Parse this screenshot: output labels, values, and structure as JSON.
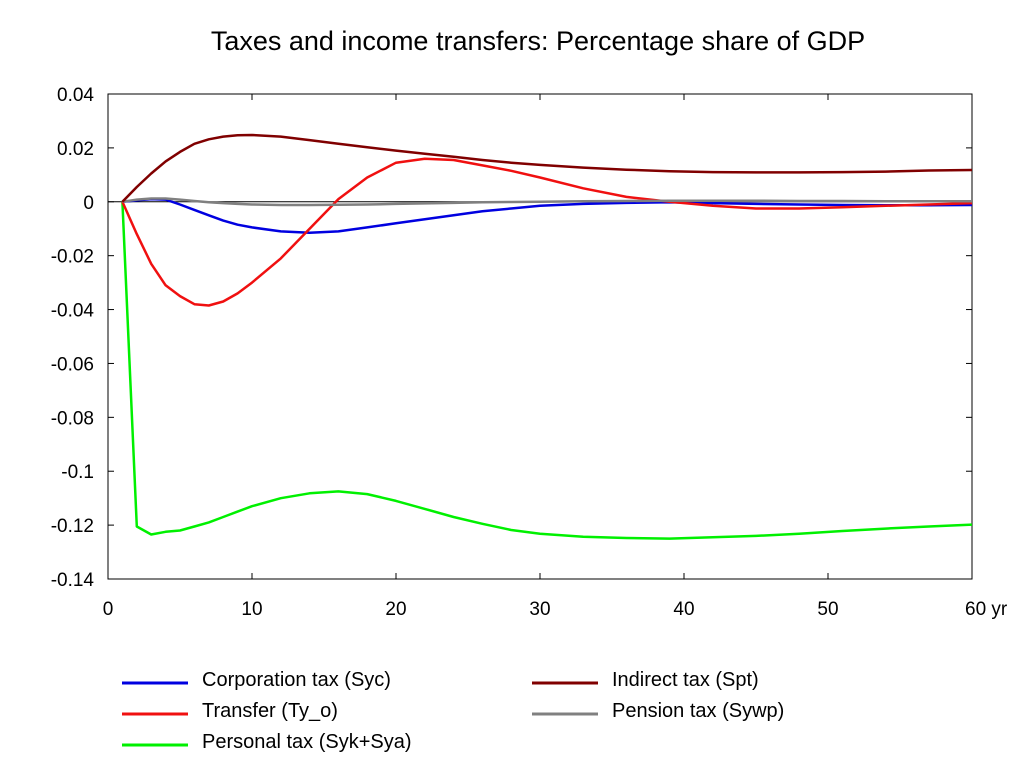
{
  "chart_data": {
    "type": "line",
    "title": "Taxes and income transfers: Percentage share of GDP",
    "xlabel": "",
    "ylabel": "",
    "xlim": [
      0,
      60
    ],
    "ylim": [
      -0.14,
      0.04
    ],
    "x_ticks": [
      0,
      10,
      20,
      30,
      40,
      50,
      60
    ],
    "x_tick_labels": [
      "0",
      "10",
      "20",
      "30",
      "40",
      "50",
      "60 yr"
    ],
    "y_ticks": [
      0.04,
      0.02,
      0,
      -0.02,
      -0.04,
      -0.06,
      -0.08,
      -0.1,
      -0.12,
      -0.14
    ],
    "y_tick_labels": [
      "0.04",
      "0.02",
      "0",
      "-0.02",
      "-0.04",
      "-0.06",
      "-0.08",
      "-0.1",
      "-0.12",
      "-0.14"
    ],
    "grid": false,
    "legend_placement": "bottom",
    "x": [
      1,
      2,
      3,
      4,
      5,
      6,
      7,
      8,
      9,
      10,
      12,
      14,
      16,
      18,
      20,
      22,
      24,
      26,
      28,
      30,
      33,
      36,
      39,
      42,
      45,
      48,
      51,
      54,
      57,
      60
    ],
    "series": [
      {
        "name": "Corporation tax (Syc)",
        "color": "#0000e0",
        "values": [
          0,
          0.0005,
          0.001,
          0.0008,
          -0.001,
          -0.003,
          -0.005,
          -0.007,
          -0.0085,
          -0.0095,
          -0.011,
          -0.0115,
          -0.011,
          -0.0095,
          -0.008,
          -0.0065,
          -0.005,
          -0.0035,
          -0.0025,
          -0.0015,
          -0.0008,
          -0.0004,
          -0.0002,
          -0.0005,
          -0.0008,
          -0.001,
          -0.0012,
          -0.0013,
          -0.0013,
          -0.0012
        ]
      },
      {
        "name": "Transfer (Ty_o)",
        "color": "#f01010",
        "values": [
          0,
          -0.012,
          -0.023,
          -0.031,
          -0.035,
          -0.038,
          -0.0385,
          -0.037,
          -0.034,
          -0.03,
          -0.021,
          -0.01,
          0.001,
          0.009,
          0.0145,
          0.016,
          0.0155,
          0.0135,
          0.0115,
          0.009,
          0.005,
          0.0018,
          0.0,
          -0.0015,
          -0.0025,
          -0.0025,
          -0.002,
          -0.0015,
          -0.001,
          -0.0005
        ]
      },
      {
        "name": "Personal tax (Syk+Sya)",
        "color": "#00f000",
        "values": [
          0,
          -0.1205,
          -0.1235,
          -0.1225,
          -0.122,
          -0.1205,
          -0.119,
          -0.117,
          -0.115,
          -0.113,
          -0.11,
          -0.1082,
          -0.1075,
          -0.1085,
          -0.111,
          -0.114,
          -0.117,
          -0.1195,
          -0.1218,
          -0.1232,
          -0.1243,
          -0.1248,
          -0.125,
          -0.1245,
          -0.124,
          -0.1232,
          -0.1222,
          -0.1213,
          -0.1205,
          -0.1198
        ]
      },
      {
        "name": "Indirect tax (Spt)",
        "color": "#800000",
        "values": [
          0,
          0.0055,
          0.0105,
          0.015,
          0.0185,
          0.0215,
          0.0232,
          0.0242,
          0.0247,
          0.0248,
          0.0242,
          0.0229,
          0.0215,
          0.0202,
          0.019,
          0.0178,
          0.0167,
          0.0155,
          0.0145,
          0.0137,
          0.0127,
          0.0119,
          0.0113,
          0.011,
          0.0109,
          0.0109,
          0.011,
          0.0112,
          0.0116,
          0.0118
        ]
      },
      {
        "name": "Pension tax (Sywp)",
        "color": "#808080",
        "values": [
          0,
          0.0008,
          0.0012,
          0.0012,
          0.0008,
          0.0003,
          -0.0002,
          -0.0005,
          -0.0008,
          -0.001,
          -0.0012,
          -0.0012,
          -0.0011,
          -0.001,
          -0.0008,
          -0.0006,
          -0.0004,
          -0.0002,
          -0.0001,
          0.0,
          0.0002,
          0.0003,
          0.0004,
          0.0004,
          0.0004,
          0.0003,
          0.0003,
          0.0002,
          0.0002,
          0.0002
        ]
      }
    ]
  }
}
